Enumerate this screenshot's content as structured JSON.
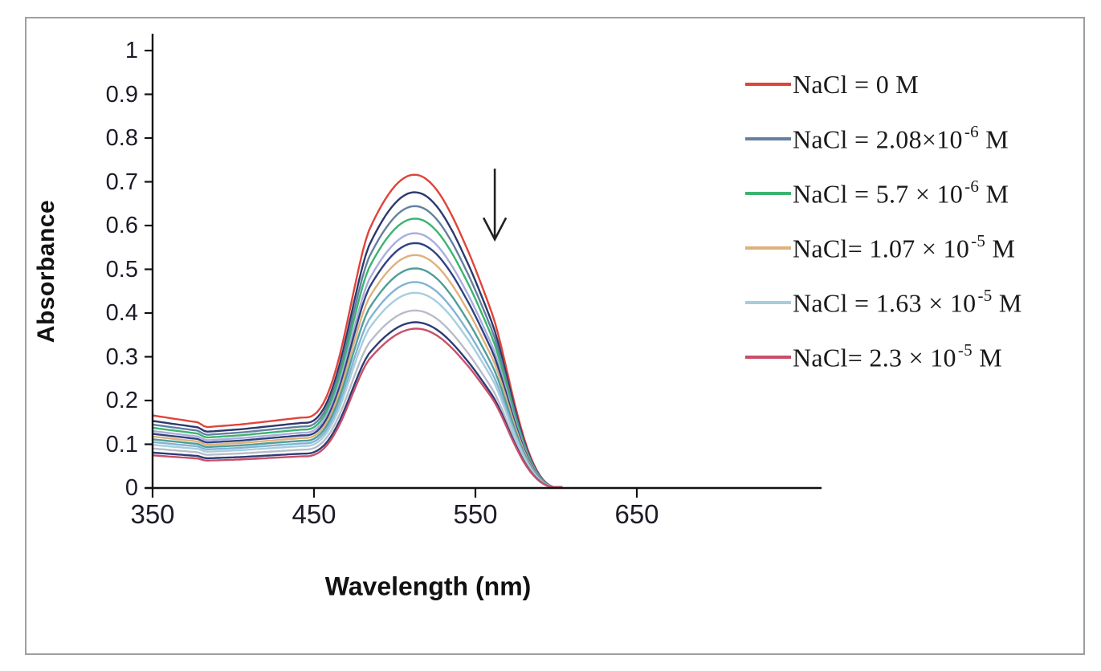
{
  "chart_data": {
    "type": "line",
    "title": "",
    "xlabel": "Wavelength (nm)",
    "ylabel": "Absorbance",
    "x_ticks": [
      {
        "value": 350,
        "label": "350"
      },
      {
        "value": 450,
        "label": "450"
      },
      {
        "value": 550,
        "label": "550"
      },
      {
        "value": 650,
        "label": "650"
      }
    ],
    "y_ticks": [
      {
        "value": 0,
        "label": "0"
      },
      {
        "value": 0.1,
        "label": "0.1"
      },
      {
        "value": 0.2,
        "label": "0.2"
      },
      {
        "value": 0.3,
        "label": "0.3"
      },
      {
        "value": 0.4,
        "label": "0.4"
      },
      {
        "value": 0.5,
        "label": "0.5"
      },
      {
        "value": 0.6,
        "label": "0.6"
      },
      {
        "value": 0.7,
        "label": "0.7"
      },
      {
        "value": 0.8,
        "label": "0.8"
      },
      {
        "value": 0.9,
        "label": "0.9"
      },
      {
        "value": 1,
        "label": "1"
      }
    ],
    "xlim_nm": [
      350,
      765
    ],
    "ylim": [
      0,
      1.04
    ],
    "peak_nm": 520,
    "curve_span_nm": [
      350,
      604
    ],
    "grid": false,
    "legend_position": "right",
    "annotation": {
      "type": "arrow-down",
      "x_nm": 562,
      "from_absorbance": 0.73,
      "to_absorbance": 0.57
    },
    "series": [
      {
        "color": "#e0443a",
        "peak_absorbance": 0.705,
        "baseline_absorbance": 0.158,
        "legend_index": 0
      },
      {
        "color": "#2b3a6d",
        "peak_absorbance": 0.666,
        "baseline_absorbance": 0.146,
        "legend_index": null
      },
      {
        "color": "#64809f",
        "peak_absorbance": 0.635,
        "baseline_absorbance": 0.138,
        "legend_index": 1
      },
      {
        "color": "#3cb371",
        "peak_absorbance": 0.607,
        "baseline_absorbance": 0.131,
        "legend_index": 2
      },
      {
        "color": "#a9aedd",
        "peak_absorbance": 0.574,
        "baseline_absorbance": 0.124,
        "legend_index": null
      },
      {
        "color": "#2f4180",
        "peak_absorbance": 0.552,
        "baseline_absorbance": 0.118,
        "legend_index": null
      },
      {
        "color": "#deb17d",
        "peak_absorbance": 0.525,
        "baseline_absorbance": 0.112,
        "legend_index": 3
      },
      {
        "color": "#4f9e98",
        "peak_absorbance": 0.495,
        "baseline_absorbance": 0.106,
        "legend_index": null
      },
      {
        "color": "#83b3d5",
        "peak_absorbance": 0.464,
        "baseline_absorbance": 0.1,
        "legend_index": null
      },
      {
        "color": "#a6cede",
        "peak_absorbance": 0.44,
        "baseline_absorbance": 0.094,
        "legend_index": 4
      },
      {
        "color": "#b8bcc8",
        "peak_absorbance": 0.4,
        "baseline_absorbance": 0.086,
        "legend_index": null
      },
      {
        "color": "#2d3b76",
        "peak_absorbance": 0.374,
        "baseline_absorbance": 0.077,
        "legend_index": null
      },
      {
        "color": "#c94f68",
        "peak_absorbance": 0.36,
        "baseline_absorbance": 0.071,
        "legend_index": 5
      }
    ],
    "legend": [
      {
        "color": "#e0443a",
        "prefix": "NaCl = 0 M",
        "exponent": null,
        "suffix": ""
      },
      {
        "color": "#64809f",
        "prefix": "NaCl = 2.08×10",
        "exponent": "-6",
        "suffix": " M"
      },
      {
        "color": "#3cb371",
        "prefix": "NaCl = 5.7 × 10",
        "exponent": "-6",
        "suffix": " M"
      },
      {
        "color": "#deb17d",
        "prefix": "NaCl= 1.07 × 10",
        "exponent": "-5",
        "suffix": " M"
      },
      {
        "color": "#a6cede",
        "prefix": "NaCl = 1.63 × 10",
        "exponent": "-5",
        "suffix": " M"
      },
      {
        "color": "#c94f68",
        "prefix": "NaCl= 2.3 × 10",
        "exponent": "-5",
        "suffix": " M"
      }
    ]
  }
}
